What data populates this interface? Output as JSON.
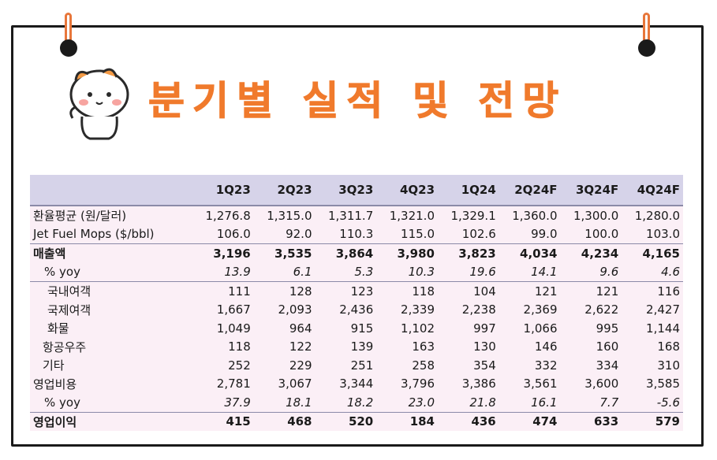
{
  "title": "분기별 실적 및 전망",
  "colors": {
    "accent": "#f07a2c",
    "header_bg": "#d6d3e9",
    "row_bg": "#fbeff6"
  },
  "table": {
    "columns": [
      "1Q23",
      "2Q23",
      "3Q23",
      "4Q23",
      "1Q24",
      "2Q24F",
      "3Q24F",
      "4Q24F"
    ],
    "rows": [
      {
        "label": "환율평균 (원/달러)",
        "values": [
          "1,276.8",
          "1,315.0",
          "1,311.7",
          "1,321.0",
          "1,329.1",
          "1,360.0",
          "1,300.0",
          "1,280.0"
        ]
      },
      {
        "label": "Jet Fuel Mops ($/bbl)",
        "values": [
          "106.0",
          "92.0",
          "110.3",
          "115.0",
          "102.6",
          "99.0",
          "100.0",
          "103.0"
        ]
      },
      {
        "label": "매출액",
        "values": [
          "3,196",
          "3,535",
          "3,864",
          "3,980",
          "3,823",
          "4,034",
          "4,234",
          "4,165"
        ]
      },
      {
        "label": "% yoy",
        "values": [
          "13.9",
          "6.1",
          "5.3",
          "10.3",
          "19.6",
          "14.1",
          "9.6",
          "4.6"
        ]
      },
      {
        "label": "국내여객",
        "values": [
          "111",
          "128",
          "123",
          "118",
          "104",
          "121",
          "121",
          "116"
        ]
      },
      {
        "label": "국제여객",
        "values": [
          "1,667",
          "2,093",
          "2,436",
          "2,339",
          "2,238",
          "2,369",
          "2,622",
          "2,427"
        ]
      },
      {
        "label": "화물",
        "values": [
          "1,049",
          "964",
          "915",
          "1,102",
          "997",
          "1,066",
          "995",
          "1,144"
        ]
      },
      {
        "label": "항공우주",
        "values": [
          "118",
          "122",
          "139",
          "163",
          "130",
          "146",
          "160",
          "168"
        ]
      },
      {
        "label": "기타",
        "values": [
          "252",
          "229",
          "251",
          "258",
          "354",
          "332",
          "334",
          "310"
        ]
      },
      {
        "label": "영업비용",
        "values": [
          "2,781",
          "3,067",
          "3,344",
          "3,796",
          "3,386",
          "3,561",
          "3,600",
          "3,585"
        ]
      },
      {
        "label": "% yoy",
        "values": [
          "37.9",
          "18.1",
          "18.2",
          "23.0",
          "21.8",
          "16.1",
          "7.7",
          "-5.6"
        ]
      },
      {
        "label": "영업이익",
        "values": [
          "415",
          "468",
          "520",
          "184",
          "436",
          "474",
          "633",
          "579"
        ]
      }
    ]
  }
}
